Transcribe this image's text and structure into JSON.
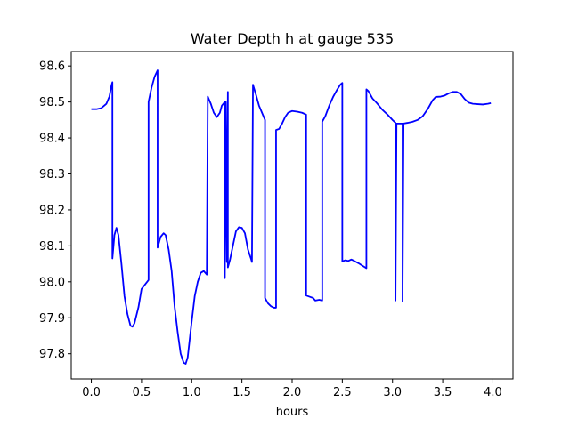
{
  "chart_data": {
    "type": "line",
    "title": "Water Depth h at gauge 535",
    "xlabel": "hours",
    "ylabel": "",
    "xlim": [
      -0.2,
      4.2
    ],
    "ylim": [
      97.73,
      98.64
    ],
    "xticks": [
      0.0,
      0.5,
      1.0,
      1.5,
      2.0,
      2.5,
      3.0,
      3.5,
      4.0
    ],
    "xtick_labels": [
      "0.0",
      "0.5",
      "1.0",
      "1.5",
      "2.0",
      "2.5",
      "3.0",
      "3.5",
      "4.0"
    ],
    "yticks": [
      97.8,
      97.9,
      98.0,
      98.1,
      98.2,
      98.3,
      98.4,
      98.5,
      98.6
    ],
    "ytick_labels": [
      "97.8",
      "97.9",
      "98.0",
      "98.1",
      "98.2",
      "98.3",
      "98.4",
      "98.5",
      "98.6"
    ],
    "grid": false,
    "legend": "none",
    "series": [
      {
        "color": "#0000ff",
        "points": [
          [
            0.0,
            98.48
          ],
          [
            0.05,
            98.48
          ],
          [
            0.1,
            98.483
          ],
          [
            0.15,
            98.495
          ],
          [
            0.18,
            98.515
          ],
          [
            0.2,
            98.545
          ],
          [
            0.21,
            98.555
          ],
          [
            0.21,
            98.065
          ],
          [
            0.23,
            98.13
          ],
          [
            0.25,
            98.15
          ],
          [
            0.27,
            98.13
          ],
          [
            0.3,
            98.05
          ],
          [
            0.33,
            97.96
          ],
          [
            0.36,
            97.91
          ],
          [
            0.39,
            97.878
          ],
          [
            0.41,
            97.875
          ],
          [
            0.43,
            97.885
          ],
          [
            0.47,
            97.93
          ],
          [
            0.5,
            97.98
          ],
          [
            0.57,
            98.005
          ],
          [
            0.57,
            98.5
          ],
          [
            0.6,
            98.54
          ],
          [
            0.63,
            98.57
          ],
          [
            0.66,
            98.588
          ],
          [
            0.66,
            98.095
          ],
          [
            0.69,
            98.125
          ],
          [
            0.72,
            98.135
          ],
          [
            0.74,
            98.13
          ],
          [
            0.77,
            98.09
          ],
          [
            0.8,
            98.03
          ],
          [
            0.83,
            97.93
          ],
          [
            0.86,
            97.86
          ],
          [
            0.89,
            97.8
          ],
          [
            0.92,
            97.775
          ],
          [
            0.94,
            97.772
          ],
          [
            0.96,
            97.79
          ],
          [
            0.98,
            97.84
          ],
          [
            1.0,
            97.89
          ],
          [
            1.03,
            97.96
          ],
          [
            1.06,
            98.0
          ],
          [
            1.09,
            98.025
          ],
          [
            1.12,
            98.03
          ],
          [
            1.15,
            98.02
          ],
          [
            1.16,
            98.515
          ],
          [
            1.19,
            98.495
          ],
          [
            1.22,
            98.47
          ],
          [
            1.25,
            98.458
          ],
          [
            1.28,
            98.47
          ],
          [
            1.3,
            98.49
          ],
          [
            1.33,
            98.5
          ],
          [
            1.33,
            98.01
          ],
          [
            1.34,
            98.5
          ],
          [
            1.35,
            98.055
          ],
          [
            1.36,
            98.528
          ],
          [
            1.36,
            98.04
          ],
          [
            1.38,
            98.06
          ],
          [
            1.41,
            98.1
          ],
          [
            1.44,
            98.14
          ],
          [
            1.47,
            98.152
          ],
          [
            1.5,
            98.15
          ],
          [
            1.53,
            98.135
          ],
          [
            1.56,
            98.09
          ],
          [
            1.59,
            98.065
          ],
          [
            1.6,
            98.055
          ],
          [
            1.61,
            98.548
          ],
          [
            1.64,
            98.52
          ],
          [
            1.67,
            98.49
          ],
          [
            1.7,
            98.47
          ],
          [
            1.73,
            98.45
          ],
          [
            1.73,
            97.955
          ],
          [
            1.76,
            97.94
          ],
          [
            1.79,
            97.932
          ],
          [
            1.82,
            97.928
          ],
          [
            1.84,
            97.928
          ],
          [
            1.84,
            98.422
          ],
          [
            1.87,
            98.425
          ],
          [
            1.9,
            98.44
          ],
          [
            1.93,
            98.458
          ],
          [
            1.96,
            98.47
          ],
          [
            2.0,
            98.475
          ],
          [
            2.05,
            98.473
          ],
          [
            2.1,
            98.47
          ],
          [
            2.14,
            98.465
          ],
          [
            2.14,
            97.962
          ],
          [
            2.18,
            97.958
          ],
          [
            2.21,
            97.955
          ],
          [
            2.23,
            97.948
          ],
          [
            2.27,
            97.95
          ],
          [
            2.3,
            97.948
          ],
          [
            2.3,
            98.445
          ],
          [
            2.33,
            98.46
          ],
          [
            2.37,
            98.49
          ],
          [
            2.41,
            98.515
          ],
          [
            2.45,
            98.535
          ],
          [
            2.48,
            98.548
          ],
          [
            2.5,
            98.553
          ],
          [
            2.5,
            98.057
          ],
          [
            2.53,
            98.06
          ],
          [
            2.56,
            98.058
          ],
          [
            2.59,
            98.062
          ],
          [
            2.62,
            98.058
          ],
          [
            2.66,
            98.052
          ],
          [
            2.7,
            98.045
          ],
          [
            2.74,
            98.038
          ],
          [
            2.74,
            98.535
          ],
          [
            2.76,
            98.53
          ],
          [
            2.8,
            98.51
          ],
          [
            2.85,
            98.495
          ],
          [
            2.9,
            98.478
          ],
          [
            2.95,
            98.465
          ],
          [
            3.0,
            98.45
          ],
          [
            3.03,
            98.442
          ],
          [
            3.03,
            97.948
          ],
          [
            3.04,
            98.44
          ],
          [
            3.08,
            98.44
          ],
          [
            3.1,
            98.44
          ],
          [
            3.1,
            97.945
          ],
          [
            3.11,
            98.44
          ],
          [
            3.15,
            98.442
          ],
          [
            3.2,
            98.445
          ],
          [
            3.25,
            98.45
          ],
          [
            3.3,
            98.46
          ],
          [
            3.35,
            98.48
          ],
          [
            3.4,
            98.505
          ],
          [
            3.43,
            98.514
          ],
          [
            3.48,
            98.515
          ],
          [
            3.52,
            98.518
          ],
          [
            3.56,
            98.524
          ],
          [
            3.6,
            98.528
          ],
          [
            3.64,
            98.528
          ],
          [
            3.68,
            98.522
          ],
          [
            3.72,
            98.508
          ],
          [
            3.76,
            98.498
          ],
          [
            3.8,
            98.495
          ],
          [
            3.85,
            98.494
          ],
          [
            3.9,
            98.493
          ],
          [
            3.95,
            98.495
          ],
          [
            3.98,
            98.497
          ]
        ]
      }
    ]
  }
}
